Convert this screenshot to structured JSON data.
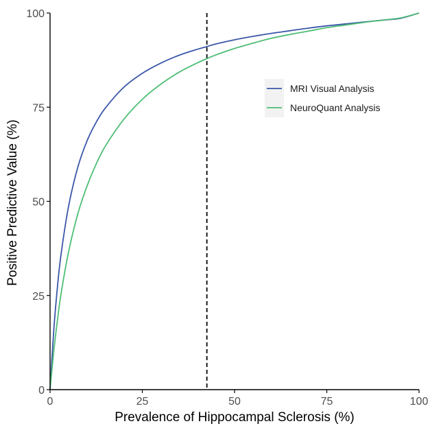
{
  "chart_data": {
    "type": "line",
    "title": "",
    "xlabel": "Prevalence of Hippocampal Sclerosis (%)",
    "ylabel": "Positive Predictive Value (%)",
    "xlim": [
      0,
      100
    ],
    "ylim": [
      0,
      100
    ],
    "xticks": [
      0,
      25,
      50,
      75,
      100
    ],
    "yticks": [
      0,
      25,
      50,
      75,
      100
    ],
    "xtick_labels": [
      "0",
      "25",
      "50",
      "75",
      "100"
    ],
    "ytick_labels": [
      "0",
      "25",
      "50",
      "75",
      "100"
    ],
    "grid": false,
    "legend_position": "right",
    "reference_line": {
      "orientation": "vertical",
      "x": 42.5,
      "style": "dashed",
      "color": "#000000"
    },
    "series": [
      {
        "name": "MRI Visual Analysis",
        "color": "#3a56a8",
        "x": [
          0,
          1,
          2,
          3,
          5,
          7.5,
          10,
          12.5,
          15,
          20,
          25,
          30,
          35,
          40,
          42.5,
          45,
          50,
          55,
          60,
          65,
          70,
          75,
          80,
          85,
          90,
          95,
          100
        ],
        "y": [
          0,
          15.7,
          27.3,
          36.1,
          48.6,
          59.0,
          66.0,
          71.0,
          74.8,
          80.3,
          84.0,
          86.7,
          88.8,
          90.4,
          91.1,
          91.8,
          92.9,
          93.8,
          94.6,
          95.3,
          96.0,
          96.6,
          97.1,
          97.6,
          98.1,
          98.6,
          100
        ]
      },
      {
        "name": "NeuroQuant Analysis",
        "color": "#4dbd74",
        "x": [
          0,
          1,
          2,
          3,
          5,
          7.5,
          10,
          12.5,
          15,
          20,
          25,
          30,
          35,
          40,
          42.5,
          45,
          50,
          55,
          60,
          65,
          70,
          75,
          80,
          85,
          90,
          95,
          100
        ],
        "y": [
          0,
          10.1,
          18.5,
          25.6,
          36.5,
          46.6,
          54.0,
          59.9,
          64.7,
          71.8,
          77.1,
          81.1,
          84.3,
          86.8,
          87.9,
          88.9,
          90.6,
          92.0,
          93.3,
          94.3,
          95.2,
          96.1,
          96.8,
          97.5,
          98.1,
          98.7,
          100
        ]
      }
    ]
  }
}
